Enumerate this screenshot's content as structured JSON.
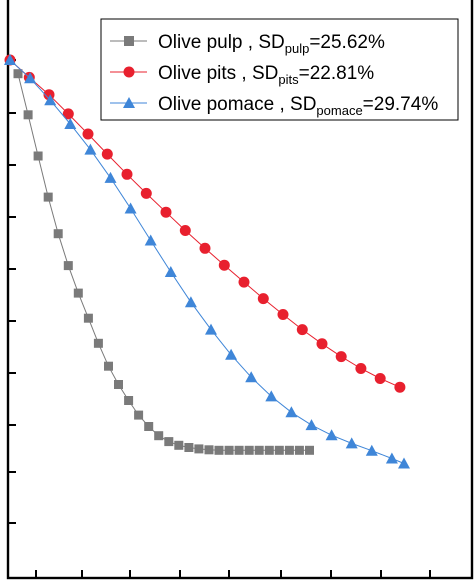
{
  "chart_data": {
    "type": "line",
    "title": "",
    "xlabel": "",
    "ylabel": "",
    "xlim": [
      0,
      100
    ],
    "ylim": [
      0,
      100
    ],
    "grid": false,
    "legend_position": "top-right",
    "series": [
      {
        "name": "Olive pulp",
        "sd_label": "SD",
        "sd_subscript": "pulp",
        "sd_value": "=25.62%",
        "color": "#7a7a7a",
        "line_color": "#7a7a7a",
        "marker": "square",
        "x": [
          2,
          4.5,
          7,
          9.5,
          12,
          14.5,
          17,
          19.5,
          22,
          24.5,
          27,
          29.5,
          32,
          34.5,
          37,
          39.5,
          42,
          44.5,
          47,
          49.5,
          52,
          54.5,
          57,
          59.5,
          62,
          64.5,
          67,
          69.5,
          72,
          74.5
        ],
        "y": [
          97,
          88,
          79,
          70,
          62,
          55,
          49,
          43.5,
          38,
          33,
          29,
          25.5,
          22.3,
          19.8,
          17.8,
          16.5,
          15.7,
          15.2,
          14.9,
          14.7,
          14.6,
          14.6,
          14.6,
          14.6,
          14.6,
          14.6,
          14.6,
          14.6,
          14.6,
          14.6
        ]
      },
      {
        "name": "Olive pits",
        "sd_label": "SD",
        "sd_subscript": "pits",
        "sd_value": "=22.81%",
        "color": "#e8202e",
        "line_color": "#e8202e",
        "marker": "circle",
        "x": [
          0,
          4.8,
          9.7,
          14.5,
          19.4,
          24.2,
          29.1,
          33.9,
          38.8,
          43.6,
          48.5,
          53.3,
          58.2,
          63,
          67.9,
          72.7,
          77.6,
          82.4,
          87.3,
          92.1,
          97
        ],
        "y": [
          100,
          96.2,
          92.4,
          88.2,
          83.8,
          79.4,
          75,
          70.8,
          66.7,
          62.7,
          58.8,
          55.1,
          51.4,
          47.8,
          44.3,
          41,
          37.9,
          35.1,
          32.5,
          30.3,
          28.4
        ]
      },
      {
        "name": "Olive pomace",
        "sd_label": "SD",
        "sd_subscript": "pomace",
        "sd_value": "=29.74%",
        "color": "#3f86d8",
        "line_color": "#3f86d8",
        "marker": "triangle",
        "x": [
          0,
          5,
          10,
          15,
          20,
          25,
          30,
          35,
          40,
          45,
          50,
          55,
          60,
          65,
          70,
          75,
          80,
          85,
          90,
          95,
          98
        ],
        "y": [
          100,
          96,
          91.2,
          86,
          80.4,
          74.2,
          67.5,
          60.5,
          53.6,
          47,
          41,
          35.5,
          30.6,
          26.4,
          22.9,
          20.1,
          17.9,
          16.1,
          14.5,
          12.8,
          11.7
        ]
      }
    ]
  }
}
